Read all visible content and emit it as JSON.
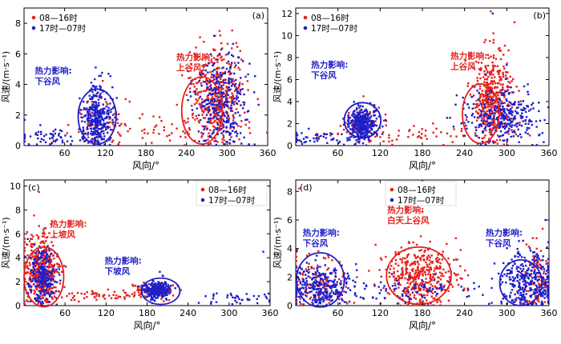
{
  "colors": {
    "day": "#e4211c",
    "night": "#1f1fc8",
    "axis": "#000000",
    "circle_day": "#e4211c",
    "circle_night": "#1f1fc8"
  },
  "chart_data": [
    {
      "type": "scatter",
      "panel_label": "(a)",
      "xlabel": "风向/°",
      "ylabel": "风速/(m·s⁻¹)",
      "xlim": [
        0,
        360
      ],
      "ylim": [
        0,
        9
      ],
      "xticks": [
        60,
        120,
        180,
        240,
        300,
        360
      ],
      "yticks": [
        0,
        2,
        4,
        6,
        8
      ],
      "legend": {
        "position": "top-left",
        "entries": [
          "08—16时",
          "17时—07时"
        ]
      },
      "series": [
        {
          "name": "08—16时",
          "color": "#e4211c",
          "clusters": [
            {
              "cx": 285,
              "cy": 3.2,
              "sx": 20,
              "sy": 1.9,
              "n": 420
            },
            {
              "cx": 110,
              "cy": 1.5,
              "sx": 18,
              "sy": 1.0,
              "n": 60
            },
            {
              "cx": 180,
              "cy": 0.9,
              "sx": 70,
              "sy": 0.6,
              "n": 60
            }
          ],
          "sample": [
            [
              262,
              4.6
            ],
            [
              290,
              7.2
            ],
            [
              300,
              5.4
            ],
            [
              255,
              2.8
            ],
            [
              280,
              6.3
            ]
          ]
        },
        {
          "name": "17时—07时",
          "color": "#1f1fc8",
          "clusters": [
            {
              "cx": 110,
              "cy": 1.8,
              "sx": 10,
              "sy": 1.1,
              "n": 330
            },
            {
              "cx": 292,
              "cy": 2.8,
              "sx": 20,
              "sy": 1.7,
              "n": 320
            },
            {
              "cx": 40,
              "cy": 0.6,
              "sx": 30,
              "sy": 0.4,
              "n": 60
            }
          ],
          "sample": [
            [
              105,
              2.5
            ],
            [
              112,
              3.9
            ],
            [
              298,
              4.1
            ],
            [
              310,
              1.2
            ]
          ]
        }
      ],
      "annotations": [
        {
          "text_lines": [
            "热力影响:",
            "下谷风"
          ],
          "color": "#1f1fc8",
          "at": [
            16,
            4.7
          ]
        },
        {
          "text_lines": [
            "热力影响:",
            "上谷风"
          ],
          "color": "#e4211c",
          "at": [
            225,
            5.6
          ]
        }
      ],
      "circles": [
        {
          "cx": 108,
          "cy": 1.9,
          "rx": 28,
          "ry": 1.8,
          "color": "#1f1fc8"
        },
        {
          "cx": 263,
          "cy": 2.3,
          "rx": 30,
          "ry": 2.2,
          "color": "#e4211c"
        }
      ]
    },
    {
      "type": "scatter",
      "panel_label": "(b)",
      "xlabel": "风向/°",
      "ylabel": "风速/(m·s⁻¹)",
      "xlim": [
        0,
        360
      ],
      "ylim": [
        0,
        12.5
      ],
      "xticks": [
        60,
        120,
        180,
        240,
        300,
        360
      ],
      "yticks": [
        0,
        2,
        4,
        6,
        8,
        10,
        12
      ],
      "legend": {
        "position": "top-left",
        "entries": [
          "08—16时",
          "17时—07时"
        ]
      },
      "series": [
        {
          "name": "08—16时",
          "color": "#e4211c",
          "clusters": [
            {
              "cx": 278,
              "cy": 4.3,
              "sx": 14,
              "sy": 2.2,
              "n": 420
            },
            {
              "cx": 95,
              "cy": 2.0,
              "sx": 15,
              "sy": 0.8,
              "n": 60
            },
            {
              "cx": 180,
              "cy": 1.0,
              "sx": 80,
              "sy": 0.6,
              "n": 60
            }
          ],
          "sample": [
            [
              276,
              9.5
            ],
            [
              270,
              7.1
            ],
            [
              260,
              2.9
            ]
          ]
        },
        {
          "name": "17时—07时",
          "color": "#1f1fc8",
          "clusters": [
            {
              "cx": 95,
              "cy": 2.0,
              "sx": 10,
              "sy": 0.8,
              "n": 330
            },
            {
              "cx": 290,
              "cy": 2.6,
              "sx": 25,
              "sy": 1.3,
              "n": 330
            },
            {
              "cx": 30,
              "cy": 0.7,
              "sx": 25,
              "sy": 0.4,
              "n": 50
            }
          ],
          "sample": [
            [
              280,
              12.0
            ],
            [
              92,
              3.6
            ]
          ]
        }
      ],
      "annotations": [
        {
          "text_lines": [
            "热力影响:",
            "下谷风"
          ],
          "color": "#1f1fc8",
          "at": [
            22,
            7.1
          ]
        },
        {
          "text_lines": [
            "热力影响:",
            "上谷风"
          ],
          "color": "#e4211c",
          "at": [
            220,
            7.9
          ]
        }
      ],
      "circles": [
        {
          "cx": 95,
          "cy": 2.3,
          "rx": 26,
          "ry": 1.6,
          "color": "#1f1fc8"
        },
        {
          "cx": 263,
          "cy": 2.9,
          "rx": 26,
          "ry": 2.7,
          "color": "#e4211c"
        }
      ]
    },
    {
      "type": "scatter",
      "panel_label": "(c)",
      "xlabel": "风向/°",
      "ylabel": "风速/(m·s⁻¹)",
      "xlim": [
        0,
        360
      ],
      "ylim": [
        0,
        10.5
      ],
      "xticks": [
        60,
        120,
        180,
        240,
        300,
        360
      ],
      "yticks": [
        0,
        2,
        4,
        6,
        8,
        10
      ],
      "legend": {
        "position": "top-right",
        "entries": [
          "08—16时",
          "17时—07时"
        ]
      },
      "series": [
        {
          "name": "08—16时",
          "color": "#e4211c",
          "clusters": [
            {
              "cx": 25,
              "cy": 3.0,
              "sx": 12,
              "sy": 1.6,
              "n": 420
            },
            {
              "cx": 190,
              "cy": 1.2,
              "sx": 20,
              "sy": 0.4,
              "n": 60
            },
            {
              "cx": 110,
              "cy": 0.8,
              "sx": 40,
              "sy": 0.3,
              "n": 60
            }
          ],
          "sample": [
            [
              22,
              9.5
            ],
            [
              30,
              6.0
            ]
          ]
        },
        {
          "name": "17时—07时",
          "color": "#1f1fc8",
          "clusters": [
            {
              "cx": 195,
              "cy": 1.3,
              "sx": 9,
              "sy": 0.4,
              "n": 330
            },
            {
              "cx": 28,
              "cy": 2.5,
              "sx": 10,
              "sy": 1.3,
              "n": 240
            },
            {
              "cx": 320,
              "cy": 0.6,
              "sx": 30,
              "sy": 0.3,
              "n": 40
            }
          ],
          "sample": [
            [
              350,
              4.5
            ]
          ]
        }
      ],
      "annotations": [
        {
          "text_lines": [
            "热力影响:",
            "上坡风"
          ],
          "color": "#e4211c",
          "at": [
            38,
            6.6
          ]
        },
        {
          "text_lines": [
            "热力影响:",
            "下坡风"
          ],
          "color": "#1f1fc8",
          "at": [
            118,
            3.5
          ]
        }
      ],
      "circles": [
        {
          "cx": 29,
          "cy": 2.4,
          "rx": 29,
          "ry": 2.5,
          "color": "#e4211c"
        },
        {
          "cx": 200,
          "cy": 1.2,
          "rx": 28,
          "ry": 1.1,
          "color": "#1f1fc8"
        }
      ]
    },
    {
      "type": "scatter",
      "panel_label": "(d)",
      "xlabel": "风向/°",
      "ylabel": "风速/(m·s⁻¹)",
      "xlim": [
        0,
        360
      ],
      "ylim": [
        0,
        8.8
      ],
      "xticks": [
        60,
        120,
        180,
        240,
        300,
        360
      ],
      "yticks": [
        0,
        2,
        4,
        6,
        8
      ],
      "legend": {
        "position": "top-center",
        "entries": [
          "08—16时",
          "17时—07时"
        ]
      },
      "series": [
        {
          "name": "08—16时",
          "color": "#e4211c",
          "clusters": [
            {
              "cx": 180,
              "cy": 2.0,
              "sx": 25,
              "sy": 1.2,
              "n": 400
            },
            {
              "cx": 30,
              "cy": 1.5,
              "sx": 25,
              "sy": 1.0,
              "n": 120
            },
            {
              "cx": 345,
              "cy": 2.0,
              "sx": 12,
              "sy": 1.5,
              "n": 100
            }
          ],
          "sample": [
            [
              5,
              8.2
            ],
            [
              180,
              6.6
            ],
            [
              190,
              4.0
            ]
          ]
        },
        {
          "name": "17时—07时",
          "color": "#1f1fc8",
          "clusters": [
            {
              "cx": 330,
              "cy": 1.6,
              "sx": 20,
              "sy": 1.3,
              "n": 340
            },
            {
              "cx": 35,
              "cy": 1.3,
              "sx": 25,
              "sy": 0.8,
              "n": 300
            },
            {
              "cx": 180,
              "cy": 1.0,
              "sx": 50,
              "sy": 0.5,
              "n": 90
            }
          ],
          "sample": [
            [
              355,
              6.0
            ],
            [
              30,
              3.5
            ]
          ]
        }
      ],
      "annotations": [
        {
          "text_lines": [
            "热力影响:",
            "下谷风"
          ],
          "color": "#1f1fc8",
          "at": [
            10,
            4.9
          ]
        },
        {
          "text_lines": [
            "热力影响:",
            "白天上谷风"
          ],
          "color": "#e4211c",
          "at": [
            130,
            6.5
          ]
        },
        {
          "text_lines": [
            "热力影响:",
            "下谷风"
          ],
          "color": "#1f1fc8",
          "at": [
            270,
            4.9
          ]
        }
      ],
      "circles": [
        {
          "cx": 35,
          "cy": 1.8,
          "rx": 34,
          "ry": 1.9,
          "color": "#1f1fc8"
        },
        {
          "cx": 175,
          "cy": 2.1,
          "rx": 46,
          "ry": 2.0,
          "color": "#e4211c"
        },
        {
          "cx": 320,
          "cy": 1.6,
          "rx": 30,
          "ry": 1.6,
          "color": "#1f1fc8"
        }
      ]
    }
  ]
}
